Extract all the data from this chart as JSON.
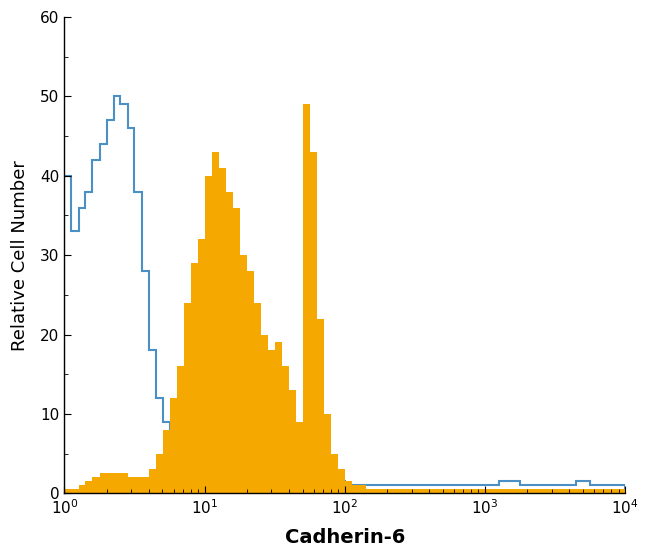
{
  "title": "",
  "xlabel": "Cadherin-6",
  "ylabel": "Relative Cell Number",
  "xlim": [
    1,
    10000
  ],
  "ylim": [
    0,
    60
  ],
  "yticks": [
    0,
    10,
    20,
    30,
    40,
    50,
    60
  ],
  "blue_color": "#4a90c4",
  "orange_color": "#f5a800",
  "background_color": "#ffffff",
  "xlabel_fontsize": 14,
  "ylabel_fontsize": 13,
  "tick_fontsize": 11,
  "xlabel_fontweight": "bold",
  "blue_linewidth": 1.5,
  "blue_hist": {
    "bin_edges": [
      1.0,
      1.12,
      1.26,
      1.41,
      1.58,
      1.78,
      2.0,
      2.24,
      2.51,
      2.82,
      3.16,
      3.55,
      3.98,
      4.47,
      5.01,
      5.62,
      6.31,
      7.08,
      7.94,
      8.91,
      10.0,
      11.22,
      12.59,
      14.13,
      15.85,
      17.78,
      19.95,
      22.39,
      25.12,
      28.18,
      31.62,
      35.48,
      39.81,
      44.67,
      50.12,
      56.23,
      63.1,
      70.79,
      79.43,
      89.13,
      100.0,
      112.2,
      125.9,
      141.3,
      158.5,
      177.8,
      199.5,
      223.9,
      251.2,
      281.8,
      316.2,
      354.8,
      398.1,
      446.7,
      501.2,
      562.3,
      631.0,
      707.9,
      794.3,
      891.3,
      1000.0,
      1122.0,
      1259.0,
      1413.0,
      1585.0,
      1778.0,
      1995.0,
      2239.0,
      2512.0,
      2818.0,
      3162.0,
      3548.0,
      3981.0,
      4467.0,
      5012.0,
      5623.0,
      6310.0,
      7079.0,
      7943.0,
      8913.0,
      10000.0
    ],
    "counts": [
      40,
      33,
      36,
      38,
      42,
      44,
      47,
      50,
      49,
      46,
      38,
      28,
      18,
      12,
      9,
      7,
      5,
      4,
      3,
      2.5,
      2,
      1.8,
      1.5,
      1.5,
      1.5,
      1.5,
      1.5,
      1.5,
      1.5,
      1.5,
      1.5,
      1.5,
      1.5,
      1.5,
      1.5,
      1.5,
      1.5,
      1.5,
      1.5,
      1.5,
      1.0,
      1.0,
      1.0,
      1.0,
      1.0,
      1.0,
      1.0,
      1.0,
      1.0,
      1.0,
      1.0,
      1.0,
      1.0,
      1.0,
      1.0,
      1.0,
      1.0,
      1.0,
      1.0,
      1.0,
      1.0,
      1.0,
      1.5,
      1.5,
      1.5,
      1.0,
      1.0,
      1.0,
      1.0,
      1.0,
      1.0,
      1.0,
      1.0,
      1.5,
      1.5,
      1.0,
      1.0,
      1.0,
      1.0,
      1.0
    ]
  },
  "orange_hist": {
    "bin_edges": [
      1.0,
      1.12,
      1.26,
      1.41,
      1.58,
      1.78,
      2.0,
      2.24,
      2.51,
      2.82,
      3.16,
      3.55,
      3.98,
      4.47,
      5.01,
      5.62,
      6.31,
      7.08,
      7.94,
      8.91,
      10.0,
      11.22,
      12.59,
      14.13,
      15.85,
      17.78,
      19.95,
      22.39,
      25.12,
      28.18,
      31.62,
      35.48,
      39.81,
      44.67,
      50.12,
      56.23,
      63.1,
      70.79,
      79.43,
      89.13,
      100.0,
      112.2,
      125.9,
      141.3,
      158.5,
      177.8,
      199.5,
      223.9,
      251.2,
      281.8,
      316.2,
      354.8,
      398.1,
      446.7,
      501.2,
      562.3,
      631.0,
      707.9,
      794.3,
      891.3,
      1000.0,
      1122.0,
      1259.0,
      1413.0,
      1585.0,
      1778.0,
      1995.0,
      2239.0,
      2512.0,
      2818.0,
      3162.0,
      3548.0,
      3981.0,
      4467.0,
      5012.0,
      5623.0,
      6310.0,
      7079.0,
      7943.0,
      8913.0,
      10000.0
    ],
    "counts": [
      0.5,
      0.5,
      1.0,
      1.5,
      2.0,
      2.5,
      2.5,
      2.5,
      2.5,
      2.0,
      2.0,
      2.0,
      3.0,
      5.0,
      8.0,
      12.0,
      16.0,
      24.0,
      29.0,
      32.0,
      40.0,
      43.0,
      41.0,
      38.0,
      36.0,
      30.0,
      28.0,
      24.0,
      20.0,
      18.0,
      19.0,
      16.0,
      13.0,
      9.0,
      49.0,
      43.0,
      22.0,
      10.0,
      5.0,
      3.0,
      1.5,
      1.0,
      1.0,
      0.5,
      0.5,
      0.5,
      0.5,
      0.5,
      0.5,
      0.5,
      0.5,
      0.5,
      0.5,
      0.5,
      0.5,
      0.5,
      0.5,
      0.5,
      0.5,
      0.5,
      0.5,
      0.5,
      0.5,
      0.5,
      0.5,
      0.5,
      0.5,
      0.5,
      0.5,
      0.5,
      0.5,
      0.5,
      0.5,
      0.5,
      0.5,
      0.5,
      0.5,
      0.5,
      0.5,
      0.5
    ]
  }
}
